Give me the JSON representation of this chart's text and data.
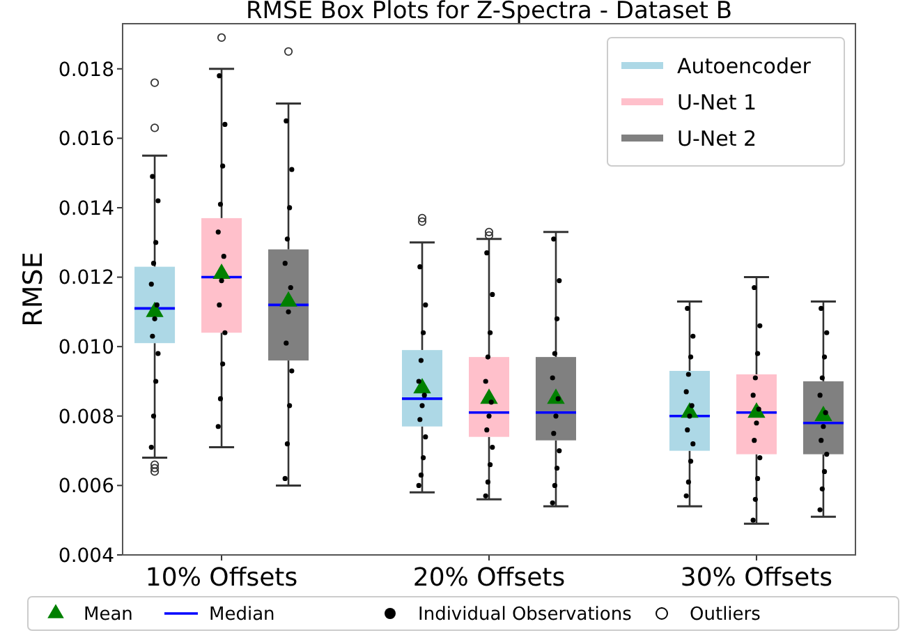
{
  "chart_data": {
    "type": "box",
    "title": "RMSE Box Plots for Z-Spectra - Dataset B",
    "ylabel": "RMSE",
    "categories": [
      null,
      "10% Offsets",
      null,
      null,
      null,
      "20% Offsets",
      null,
      null,
      null,
      "30% Offsets",
      null
    ],
    "ylim": [
      0.004,
      0.0193
    ],
    "yticks": [
      0.004,
      0.006,
      0.008,
      {
        "value": 0.01,
        "label": "0.010"
      },
      0.012,
      0.014,
      0.016,
      0.018
    ],
    "legend": "top right",
    "annotations": [
      "Mean",
      "Median",
      "Individual Observations",
      "Outliers"
    ],
    "series": [
      {
        "name": "Autoencoder",
        "color": "#add8e6",
        "boxes": [
          {
            "low": 0.0068,
            "q1": 0.0101,
            "median": 0.0111,
            "q3": 0.0123,
            "high": 0.0155,
            "mean": 0.011,
            "outliers": [
              0.0176,
              0.0163,
              0.0066,
              0.0065,
              0.0064
            ]
          },
          null,
          null,
          null,
          {
            "low": 0.0058,
            "q1": 0.0077,
            "median": 0.0085,
            "q3": 0.0099,
            "high": 0.013,
            "mean": 0.0088,
            "outliers": [
              0.0137,
              0.0136
            ]
          },
          null,
          null,
          null,
          {
            "low": 0.0054,
            "q1": 0.007,
            "median": 0.008,
            "q3": 0.0093,
            "high": 0.0113,
            "mean": 0.0081
          },
          null,
          null
        ]
      },
      {
        "name": "U-Net 1",
        "color": "#ffc0cb",
        "boxes": [
          null,
          {
            "low": 0.0071,
            "q1": 0.0104,
            "median": 0.012,
            "q3": 0.0137,
            "high": 0.018,
            "mean": 0.0121,
            "outliers": [
              0.0189
            ]
          },
          null,
          null,
          null,
          {
            "low": 0.0056,
            "q1": 0.0074,
            "median": 0.0081,
            "q3": 0.0097,
            "high": 0.0131,
            "mean": 0.0085,
            "outliers": [
              0.0133,
              0.0132
            ]
          },
          null,
          null,
          null,
          {
            "low": 0.0049,
            "q1": 0.0069,
            "median": 0.0081,
            "q3": 0.0092,
            "high": 0.012,
            "mean": 0.0081
          },
          null
        ]
      },
      {
        "name": "U-Net 2",
        "color": "#808080",
        "boxes": [
          null,
          null,
          {
            "low": 0.006,
            "q1": 0.0096,
            "median": 0.0112,
            "q3": 0.0128,
            "high": 0.017,
            "mean": 0.0113,
            "outliers": [
              0.0185
            ]
          },
          null,
          null,
          null,
          {
            "low": 0.0054,
            "q1": 0.0073,
            "median": 0.0081,
            "q3": 0.0097,
            "high": 0.0133,
            "mean": 0.0085
          },
          null,
          null,
          null,
          {
            "low": 0.0051,
            "q1": 0.0069,
            "median": 0.0078,
            "q3": 0.009,
            "high": 0.0113,
            "mean": 0.008
          }
        ]
      },
      {
        "type": "scatter",
        "color": "#000000",
        "values": [
          0.0149,
          0.0178,
          0.0165,
          null,
          0.0123,
          0.0127,
          0.0131,
          null,
          0.0111,
          0.0117,
          0.0111
        ]
      },
      {
        "type": "scatter",
        "color": "#000000",
        "values": [
          0.0142,
          0.0164,
          0.0151,
          null,
          0.0112,
          0.0115,
          0.0119,
          null,
          0.0103,
          0.0106,
          0.0104
        ]
      },
      {
        "type": "scatter",
        "color": "#000000",
        "values": [
          0.013,
          0.0152,
          0.014,
          null,
          0.0104,
          0.0104,
          0.0108,
          null,
          0.0097,
          0.0098,
          0.0097
        ]
      },
      {
        "type": "scatter",
        "color": "#000000",
        "values": [
          0.0124,
          0.0141,
          0.0131,
          null,
          0.0096,
          0.0097,
          0.0098,
          null,
          0.0092,
          0.0091,
          0.0091
        ]
      },
      {
        "type": "scatter",
        "color": "#000000",
        "values": [
          0.0118,
          0.0133,
          0.0124,
          null,
          0.009,
          0.009,
          0.0091,
          null,
          0.0087,
          0.0086,
          0.0086
        ]
      },
      {
        "type": "scatter",
        "color": "#000000",
        "values": [
          0.0112,
          0.0126,
          0.0117,
          null,
          0.0086,
          0.0084,
          0.0085,
          null,
          0.0083,
          0.0082,
          0.0081
        ]
      },
      {
        "type": "scatter",
        "color": "#000000",
        "values": [
          0.0108,
          0.0119,
          0.011,
          null,
          0.0083,
          0.008,
          0.008,
          null,
          0.008,
          0.0078,
          0.0077
        ]
      },
      {
        "type": "scatter",
        "color": "#000000",
        "values": [
          0.0103,
          0.0112,
          0.0101,
          null,
          0.0079,
          0.0076,
          0.0075,
          null,
          0.0076,
          0.0073,
          0.0073
        ]
      },
      {
        "type": "scatter",
        "color": "#000000",
        "values": [
          0.0098,
          0.0104,
          0.0093,
          null,
          0.0074,
          0.0071,
          0.007,
          null,
          0.0072,
          0.0068,
          0.0069
        ]
      },
      {
        "type": "scatter",
        "color": "#000000",
        "values": [
          0.009,
          0.0095,
          0.0083,
          null,
          0.0068,
          0.0066,
          0.0065,
          null,
          0.0067,
          0.0062,
          0.0064
        ]
      },
      {
        "type": "scatter",
        "color": "#000000",
        "values": [
          0.008,
          0.0085,
          0.0072,
          null,
          0.0063,
          0.0061,
          0.006,
          null,
          0.0061,
          0.0056,
          0.0059
        ]
      },
      {
        "type": "scatter",
        "color": "#000000",
        "values": [
          0.0071,
          0.0077,
          0.0062,
          null,
          0.006,
          0.0057,
          0.0055,
          null,
          0.0057,
          0.005,
          0.0053
        ]
      }
    ]
  }
}
